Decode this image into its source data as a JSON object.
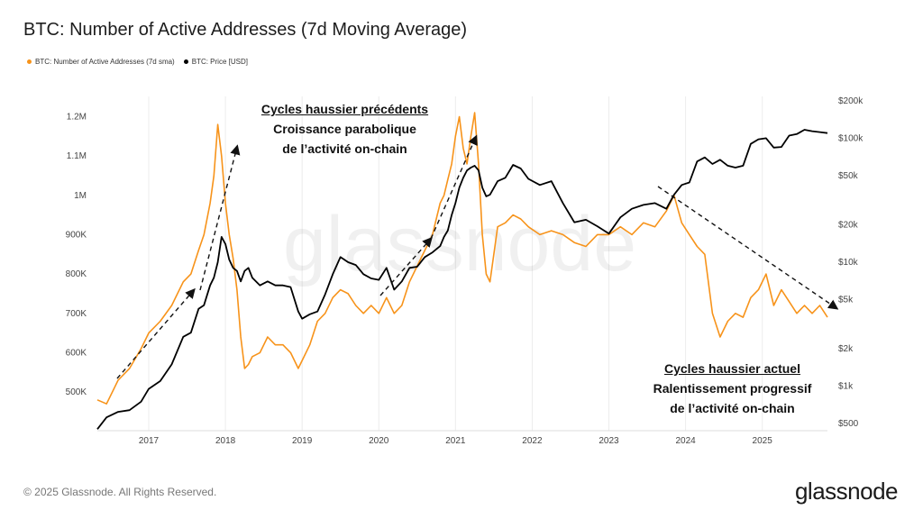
{
  "title": "BTC: Number of Active Addresses (7d Moving Average)",
  "legend": {
    "addresses": "BTC: Number of Active Addresses (7d sma)",
    "price": "BTC: Price [USD]"
  },
  "annotations": {
    "previous": {
      "head": "Cycles haussier précédents",
      "line1": "Croissance parabolique",
      "line2": "de l’activité on-chain"
    },
    "current": {
      "head": "Cycles haussier actuel",
      "line1": "Ralentissement progressif",
      "line2": "de l’activité on-chain"
    }
  },
  "watermark": "glassnode",
  "copyright": "© 2025 Glassnode. All Rights Reserved.",
  "brand": "glassnode",
  "colors": {
    "addresses": "#F7931A",
    "price": "#000000",
    "grid": "#ececec"
  },
  "chart_data": {
    "type": "line",
    "title": "BTC: Number of Active Addresses (7d Moving Average)",
    "x_ticks": [
      "2017",
      "2018",
      "2019",
      "2020",
      "2021",
      "2022",
      "2023",
      "2024",
      "2025"
    ],
    "y_left_ticks": [
      "500K",
      "600K",
      "700K",
      "800K",
      "900K",
      "1M",
      "1.1M",
      "1.2M"
    ],
    "y_left_range": [
      420000,
      1240000
    ],
    "y_right_ticks": [
      "$500",
      "$1k",
      "$2k",
      "$5k",
      "$10k",
      "$20k",
      "$50k",
      "$100k",
      "$200k"
    ],
    "y_right_range": [
      500,
      200000
    ],
    "y_right_scale": "log",
    "x_range": [
      2016.33,
      2025.85
    ],
    "grid": "vertical",
    "series": [
      {
        "name": "BTC: Number of Active Addresses (7d sma)",
        "axis": "left",
        "x": [
          2016.33,
          2016.45,
          2016.6,
          2016.75,
          2016.9,
          2017.0,
          2017.15,
          2017.3,
          2017.45,
          2017.55,
          2017.65,
          2017.72,
          2017.8,
          2017.85,
          2017.9,
          2017.95,
          2018.0,
          2018.05,
          2018.1,
          2018.15,
          2018.2,
          2018.25,
          2018.3,
          2018.35,
          2018.45,
          2018.55,
          2018.65,
          2018.75,
          2018.85,
          2018.95,
          2019.0,
          2019.1,
          2019.2,
          2019.3,
          2019.4,
          2019.5,
          2019.6,
          2019.7,
          2019.8,
          2019.9,
          2020.0,
          2020.1,
          2020.2,
          2020.3,
          2020.4,
          2020.5,
          2020.6,
          2020.7,
          2020.8,
          2020.85,
          2020.9,
          2020.95,
          2021.0,
          2021.05,
          2021.1,
          2021.15,
          2021.2,
          2021.25,
          2021.3,
          2021.35,
          2021.4,
          2021.45,
          2021.55,
          2021.65,
          2021.75,
          2021.85,
          2021.95,
          2022.1,
          2022.25,
          2022.4,
          2022.55,
          2022.7,
          2022.85,
          2023.0,
          2023.15,
          2023.3,
          2023.45,
          2023.6,
          2023.75,
          2023.85,
          2023.95,
          2024.05,
          2024.15,
          2024.25,
          2024.35,
          2024.45,
          2024.55,
          2024.65,
          2024.75,
          2024.85,
          2024.95,
          2025.05,
          2025.15,
          2025.25,
          2025.35,
          2025.45,
          2025.55,
          2025.65,
          2025.75,
          2025.85
        ],
        "values": [
          480000,
          470000,
          530000,
          560000,
          610000,
          650000,
          680000,
          720000,
          780000,
          800000,
          860000,
          900000,
          980000,
          1050000,
          1180000,
          1100000,
          980000,
          900000,
          840000,
          760000,
          640000,
          560000,
          570000,
          590000,
          600000,
          640000,
          620000,
          620000,
          600000,
          560000,
          580000,
          620000,
          680000,
          700000,
          740000,
          760000,
          750000,
          720000,
          700000,
          720000,
          700000,
          740000,
          700000,
          720000,
          780000,
          820000,
          860000,
          900000,
          980000,
          1000000,
          1040000,
          1080000,
          1150000,
          1200000,
          1120000,
          1080000,
          1150000,
          1210000,
          1080000,
          900000,
          800000,
          780000,
          920000,
          930000,
          950000,
          940000,
          920000,
          900000,
          910000,
          900000,
          880000,
          870000,
          900000,
          900000,
          920000,
          900000,
          930000,
          920000,
          960000,
          1000000,
          930000,
          900000,
          870000,
          850000,
          700000,
          640000,
          680000,
          700000,
          690000,
          740000,
          760000,
          800000,
          720000,
          760000,
          730000,
          700000,
          720000,
          700000,
          720000,
          690000
        ]
      },
      {
        "name": "BTC: Price [USD]",
        "axis": "right",
        "x": [
          2016.33,
          2016.45,
          2016.6,
          2016.75,
          2016.9,
          2017.0,
          2017.15,
          2017.3,
          2017.45,
          2017.55,
          2017.65,
          2017.72,
          2017.8,
          2017.85,
          2017.9,
          2017.95,
          2018.0,
          2018.05,
          2018.1,
          2018.15,
          2018.2,
          2018.25,
          2018.3,
          2018.35,
          2018.45,
          2018.55,
          2018.65,
          2018.75,
          2018.85,
          2018.95,
          2019.0,
          2019.1,
          2019.2,
          2019.3,
          2019.4,
          2019.5,
          2019.6,
          2019.7,
          2019.8,
          2019.9,
          2020.0,
          2020.1,
          2020.2,
          2020.3,
          2020.4,
          2020.5,
          2020.6,
          2020.7,
          2020.8,
          2020.85,
          2020.9,
          2020.95,
          2021.0,
          2021.05,
          2021.1,
          2021.15,
          2021.2,
          2021.25,
          2021.3,
          2021.35,
          2021.4,
          2021.45,
          2021.55,
          2021.65,
          2021.75,
          2021.85,
          2021.95,
          2022.1,
          2022.25,
          2022.4,
          2022.55,
          2022.7,
          2022.85,
          2023.0,
          2023.15,
          2023.3,
          2023.45,
          2023.6,
          2023.75,
          2023.85,
          2023.95,
          2024.05,
          2024.15,
          2024.25,
          2024.35,
          2024.45,
          2024.55,
          2024.65,
          2024.75,
          2024.85,
          2024.95,
          2025.05,
          2025.15,
          2025.25,
          2025.35,
          2025.45,
          2025.55,
          2025.65,
          2025.75,
          2025.85
        ],
        "values": [
          450,
          560,
          620,
          640,
          750,
          950,
          1100,
          1500,
          2500,
          2700,
          4200,
          4500,
          6500,
          7500,
          10000,
          16000,
          14000,
          10500,
          9000,
          8500,
          7000,
          8500,
          9000,
          7500,
          6500,
          7000,
          6500,
          6500,
          6300,
          4000,
          3500,
          3800,
          4000,
          5500,
          8000,
          11000,
          10000,
          9500,
          8000,
          7400,
          7200,
          9000,
          6000,
          7000,
          9000,
          9200,
          11000,
          12000,
          13500,
          16000,
          18000,
          24000,
          30000,
          40000,
          48000,
          55000,
          58000,
          60000,
          55000,
          40000,
          34000,
          35000,
          45000,
          48000,
          61000,
          57000,
          47000,
          42000,
          45000,
          30000,
          21000,
          22000,
          19500,
          17000,
          23000,
          27000,
          29000,
          30000,
          27000,
          35000,
          42000,
          44000,
          65000,
          70000,
          62000,
          67000,
          60000,
          58000,
          60000,
          90000,
          98000,
          100000,
          84000,
          85000,
          105000,
          108000,
          117000,
          114000,
          112000,
          110000
        ]
      }
    ]
  }
}
